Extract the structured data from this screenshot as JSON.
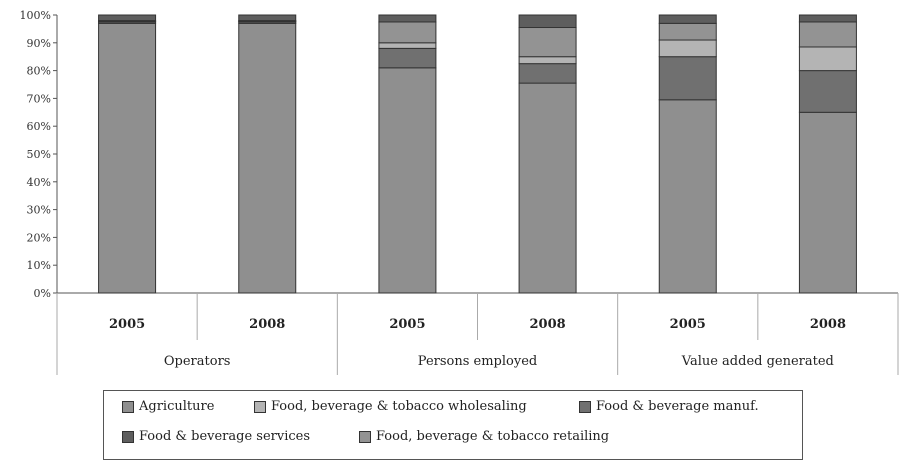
{
  "chart_data": {
    "type": "bar",
    "stacked": true,
    "percent": true,
    "title": "",
    "xlabel": "",
    "ylabel": "",
    "ylim": [
      0,
      100
    ],
    "yticks": [
      "0%",
      "10%",
      "20%",
      "30%",
      "40%",
      "50%",
      "60%",
      "70%",
      "80%",
      "90%",
      "100%"
    ],
    "groups": [
      {
        "label": "Operators",
        "categories": [
          "2005",
          "2008"
        ]
      },
      {
        "label": "Persons employed",
        "categories": [
          "2005",
          "2008"
        ]
      },
      {
        "label": "Value added generated",
        "categories": [
          "2005",
          "2008"
        ]
      }
    ],
    "series": [
      {
        "name": "Agriculture",
        "color": "#8f8f8f",
        "values": [
          97,
          97,
          81,
          75.5,
          69.5,
          65
        ]
      },
      {
        "name": "Food & beverage manuf.",
        "color": "#707070",
        "values": [
          0.5,
          0.5,
          7,
          7,
          15.5,
          15
        ]
      },
      {
        "name": "Food, beverage & tobacco wholesaling",
        "color": "#b4b4b4",
        "values": [
          0.2,
          0.2,
          2,
          2.5,
          6,
          8.5
        ]
      },
      {
        "name": "Food, beverage & tobacco retailing",
        "color": "#939393",
        "values": [
          0.3,
          0.3,
          7.5,
          10.5,
          6,
          9
        ]
      },
      {
        "name": "Food & beverage services",
        "color": "#5e5e5e",
        "values": [
          2,
          2,
          2.5,
          4.5,
          3,
          2.5
        ]
      }
    ],
    "legend": {
      "position": "bottom",
      "rows": [
        [
          "Agriculture",
          "Food, beverage & tobacco wholesaling",
          "Food & beverage manuf."
        ],
        [
          "Food & beverage services",
          "Food, beverage & tobacco retailing"
        ]
      ]
    },
    "grid": false
  }
}
